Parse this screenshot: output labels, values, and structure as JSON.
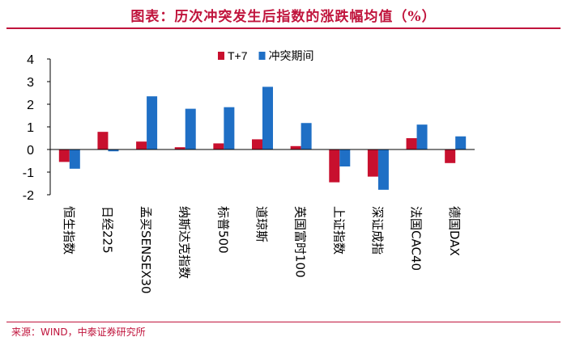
{
  "title": "图表：历次冲突发生后指数的涨跌幅均值（%）",
  "source": "来源：WIND，中泰证券研究所",
  "chart_data": {
    "type": "bar",
    "categories": [
      "恒生指数",
      "日经225",
      "孟买SENSEX30",
      "纳斯达克指数",
      "标普500",
      "道琼斯",
      "英国富时100",
      "上证指数",
      "深证成指",
      "法国CAC40",
      "德国DAX"
    ],
    "series": [
      {
        "name": "T+7",
        "color": "#c8102e",
        "values": [
          -0.55,
          0.78,
          0.35,
          0.1,
          0.27,
          0.45,
          0.15,
          -1.45,
          -1.2,
          0.5,
          -0.6
        ]
      },
      {
        "name": "冲突期间",
        "color": "#1f6fc5",
        "values": [
          -0.85,
          -0.08,
          2.35,
          1.8,
          1.87,
          2.77,
          1.17,
          -0.75,
          -1.78,
          1.1,
          0.58
        ]
      }
    ],
    "ylim": [
      -2,
      4
    ],
    "yticks": [
      4,
      3,
      2,
      1,
      0,
      -1,
      -2
    ],
    "xlabel": "",
    "ylabel": "",
    "legend": "top-center"
  }
}
